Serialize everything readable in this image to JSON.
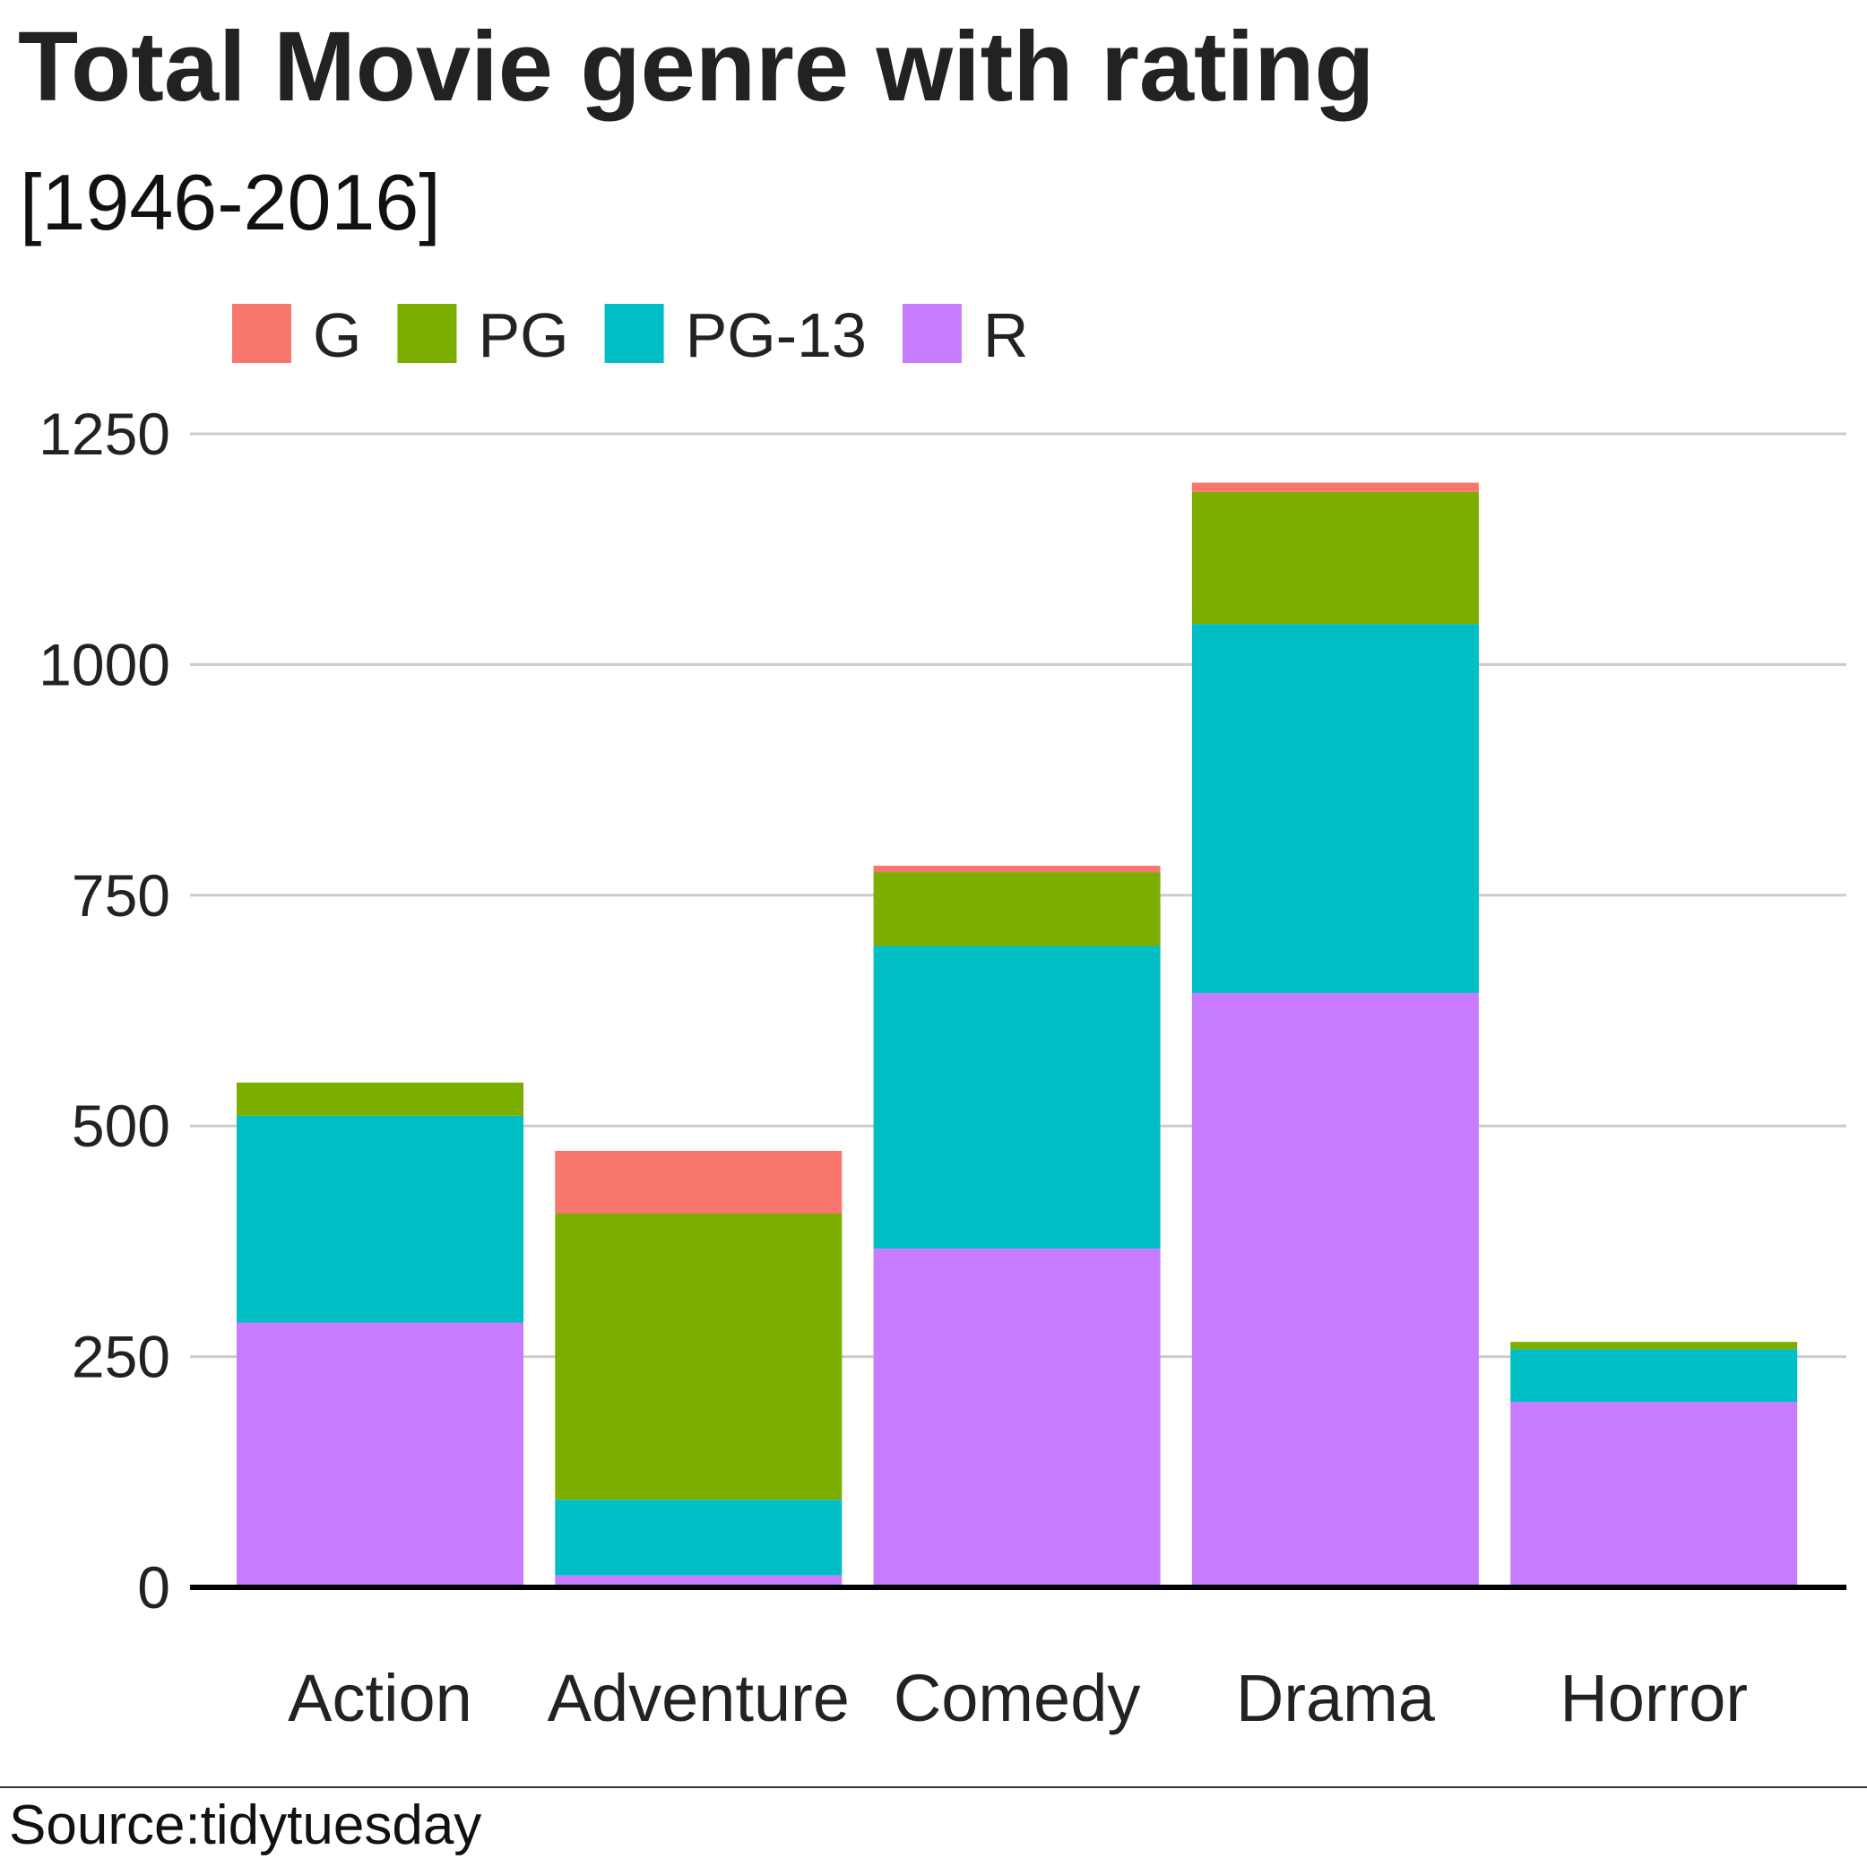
{
  "chart_data": {
    "type": "bar",
    "stacked": true,
    "title": "Total Movie genre with rating",
    "subtitle": "[1946-2016]",
    "xlabel": "",
    "ylabel": "",
    "categories": [
      "Action",
      "Adventure",
      "Comedy",
      "Drama",
      "Horror"
    ],
    "series": [
      {
        "name": "G",
        "color": "#F8766D",
        "values": [
          0,
          68,
          7,
          10,
          0
        ]
      },
      {
        "name": "PG",
        "color": "#7CAE00",
        "values": [
          36,
          310,
          80,
          143,
          8
        ]
      },
      {
        "name": "PG-13",
        "color": "#00BFC4",
        "values": [
          224,
          82,
          328,
          400,
          57
        ]
      },
      {
        "name": "R",
        "color": "#C77CFF",
        "values": [
          287,
          13,
          367,
          644,
          201
        ]
      }
    ],
    "legend": [
      "G",
      "PG",
      "PG-13",
      "R"
    ],
    "legend_position": "top",
    "ylim": [
      0,
      1300
    ],
    "yticks": [
      0,
      250,
      500,
      750,
      1000,
      1250
    ],
    "grid": true,
    "source": "Source:tidytuesday"
  }
}
